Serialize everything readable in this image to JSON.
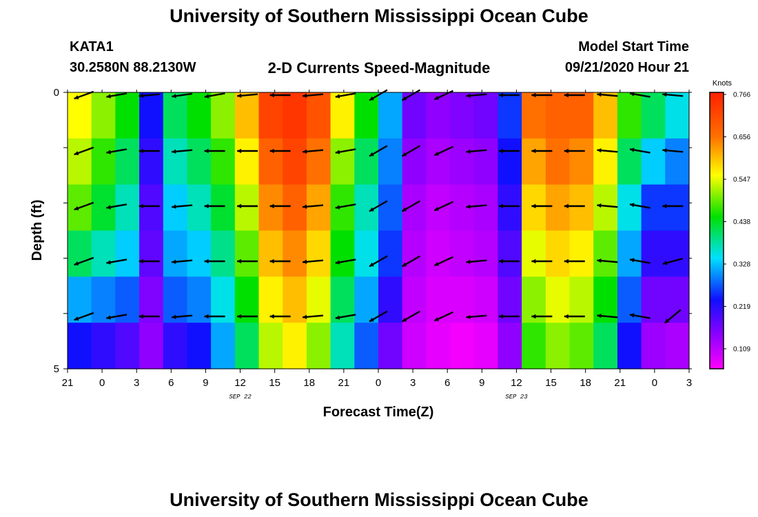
{
  "header": {
    "title_top": "University of Southern Mississippi Ocean Cube",
    "station_id": "KATA1",
    "coordinates": "30.2580N 88.2130W",
    "plot_title": "2-D Currents Speed-Magnitude",
    "model_start_label": "Model Start Time",
    "model_start_value": "09/21/2020 Hour 21",
    "title_bottom": "University of Southern Mississippi Ocean Cube"
  },
  "chart_data": {
    "type": "heatmap",
    "title": "2-D Currents Speed-Magnitude",
    "xlabel": "Forecast Time(Z)",
    "ylabel": "Depth (ft)",
    "x_tick_labels": [
      "21",
      "0",
      "3",
      "6",
      "9",
      "12",
      "15",
      "18",
      "21",
      "0",
      "3",
      "6",
      "9",
      "12",
      "15",
      "18",
      "21",
      "0",
      "3"
    ],
    "x_date_labels": [
      {
        "label": "SEP 22",
        "at_tick": 5
      },
      {
        "label": "SEP 23",
        "at_tick": 13
      }
    ],
    "y_tick_labels": [
      "0",
      "5"
    ],
    "y_range": [
      0,
      5
    ],
    "colorbar": {
      "unit": "Knots",
      "ticks": [
        "0.766",
        "0.656",
        "0.547",
        "0.438",
        "0.328",
        "0.219",
        "0.109"
      ],
      "range": [
        0.05,
        0.77
      ]
    },
    "speed_columns_approx_knots": [
      [
        0.55,
        0.52,
        0.48,
        0.4,
        0.3,
        0.22
      ],
      [
        0.5,
        0.46,
        0.42,
        0.36,
        0.28,
        0.2
      ],
      [
        0.44,
        0.4,
        0.36,
        0.32,
        0.26,
        0.18
      ],
      [
        0.22,
        0.2,
        0.18,
        0.17,
        0.15,
        0.14
      ],
      [
        0.4,
        0.36,
        0.32,
        0.3,
        0.26,
        0.2
      ],
      [
        0.44,
        0.4,
        0.36,
        0.32,
        0.28,
        0.22
      ],
      [
        0.5,
        0.46,
        0.42,
        0.38,
        0.34,
        0.3
      ],
      [
        0.6,
        0.56,
        0.52,
        0.48,
        0.44,
        0.4
      ],
      [
        0.72,
        0.68,
        0.64,
        0.6,
        0.56,
        0.52
      ],
      [
        0.74,
        0.72,
        0.68,
        0.64,
        0.6,
        0.56
      ],
      [
        0.7,
        0.66,
        0.62,
        0.58,
        0.54,
        0.5
      ],
      [
        0.56,
        0.5,
        0.46,
        0.44,
        0.4,
        0.36
      ],
      [
        0.44,
        0.4,
        0.36,
        0.34,
        0.3,
        0.26
      ],
      [
        0.3,
        0.28,
        0.26,
        0.24,
        0.2,
        0.16
      ],
      [
        0.16,
        0.14,
        0.12,
        0.11,
        0.1,
        0.09
      ],
      [
        0.14,
        0.12,
        0.1,
        0.09,
        0.08,
        0.07
      ],
      [
        0.15,
        0.13,
        0.11,
        0.1,
        0.08,
        0.06
      ],
      [
        0.16,
        0.14,
        0.12,
        0.11,
        0.09,
        0.07
      ],
      [
        0.24,
        0.22,
        0.2,
        0.18,
        0.16,
        0.14
      ],
      [
        0.66,
        0.62,
        0.58,
        0.54,
        0.5,
        0.46
      ],
      [
        0.68,
        0.66,
        0.62,
        0.58,
        0.54,
        0.5
      ],
      [
        0.68,
        0.64,
        0.6,
        0.56,
        0.52,
        0.48
      ],
      [
        0.6,
        0.56,
        0.52,
        0.48,
        0.44,
        0.4
      ],
      [
        0.46,
        0.4,
        0.34,
        0.3,
        0.26,
        0.22
      ],
      [
        0.4,
        0.32,
        0.24,
        0.2,
        0.16,
        0.13
      ],
      [
        0.34,
        0.28,
        0.24,
        0.2,
        0.16,
        0.12
      ]
    ],
    "vector_depth_rows": 5,
    "vector_angles_deg": [
      [
        20,
        10,
        5,
        8,
        10,
        5,
        0,
        5,
        10,
        30,
        30,
        25,
        5,
        0,
        0,
        0,
        -5,
        -10,
        -5
      ],
      [
        20,
        10,
        0,
        5,
        0,
        0,
        0,
        5,
        10,
        30,
        30,
        25,
        5,
        0,
        0,
        0,
        -5,
        -10,
        -5
      ],
      [
        20,
        10,
        0,
        5,
        0,
        0,
        0,
        5,
        10,
        30,
        30,
        25,
        5,
        0,
        0,
        0,
        -5,
        -10,
        0
      ],
      [
        20,
        10,
        0,
        5,
        0,
        0,
        0,
        5,
        10,
        30,
        30,
        25,
        5,
        0,
        0,
        0,
        -5,
        -10,
        15
      ],
      [
        20,
        10,
        0,
        5,
        0,
        0,
        0,
        5,
        10,
        30,
        30,
        25,
        5,
        0,
        0,
        0,
        -5,
        -10,
        40
      ]
    ]
  }
}
